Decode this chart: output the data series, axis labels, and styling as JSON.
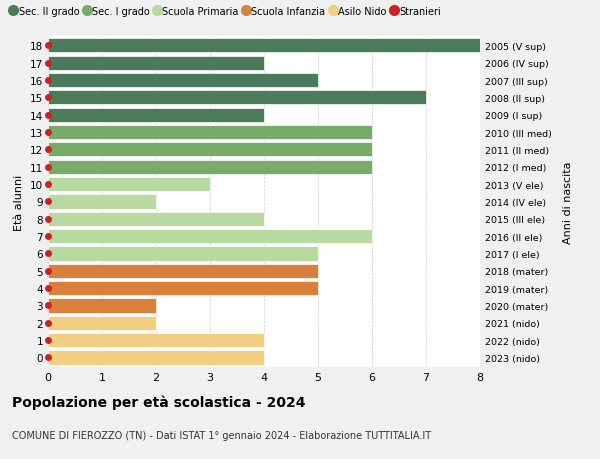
{
  "ages": [
    18,
    17,
    16,
    15,
    14,
    13,
    12,
    11,
    10,
    9,
    8,
    7,
    6,
    5,
    4,
    3,
    2,
    1,
    0
  ],
  "right_labels": [
    "2005 (V sup)",
    "2006 (IV sup)",
    "2007 (III sup)",
    "2008 (II sup)",
    "2009 (I sup)",
    "2010 (III med)",
    "2011 (II med)",
    "2012 (I med)",
    "2013 (V ele)",
    "2014 (IV ele)",
    "2015 (III ele)",
    "2016 (II ele)",
    "2017 (I ele)",
    "2018 (mater)",
    "2019 (mater)",
    "2020 (mater)",
    "2021 (nido)",
    "2022 (nido)",
    "2023 (nido)"
  ],
  "bar_values": [
    8,
    4,
    5,
    7,
    4,
    6,
    6,
    6,
    3,
    2,
    4,
    6,
    5,
    5,
    5,
    2,
    2,
    4,
    4
  ],
  "bar_colors": [
    "#4a7c59",
    "#4a7c59",
    "#4a7c59",
    "#4a7c59",
    "#4a7c59",
    "#7aaa6a",
    "#7aaa6a",
    "#7aaa6a",
    "#b8d9a0",
    "#b8d9a0",
    "#b8d9a0",
    "#b8d9a0",
    "#b8d9a0",
    "#d9803a",
    "#d9803a",
    "#d9803a",
    "#f0d080",
    "#f0d080",
    "#f0d080"
  ],
  "stranieri_dots": [
    18,
    17,
    16,
    15,
    14,
    13,
    12,
    11,
    10,
    9,
    8,
    7,
    6,
    5,
    4,
    3,
    2,
    1,
    0
  ],
  "legend_labels": [
    "Sec. II grado",
    "Sec. I grado",
    "Scuola Primaria",
    "Scuola Infanzia",
    "Asilo Nido",
    "Stranieri"
  ],
  "legend_colors": [
    "#4a7c59",
    "#7aaa6a",
    "#b8d9a0",
    "#d9803a",
    "#f0d080",
    "#cc2222"
  ],
  "ylabel_left": "Età alunni",
  "ylabel_right": "Anni di nascita",
  "title": "Popolazione per età scolastica - 2024",
  "subtitle": "COMUNE DI FIEROZZO (TN) - Dati ISTAT 1° gennaio 2024 - Elaborazione TUTTITALIA.IT",
  "xlim": [
    0,
    8
  ],
  "xticks": [
    0,
    1,
    2,
    3,
    4,
    5,
    6,
    7,
    8
  ],
  "bg_color": "#f0f0f0",
  "plot_bg_color": "#ffffff"
}
